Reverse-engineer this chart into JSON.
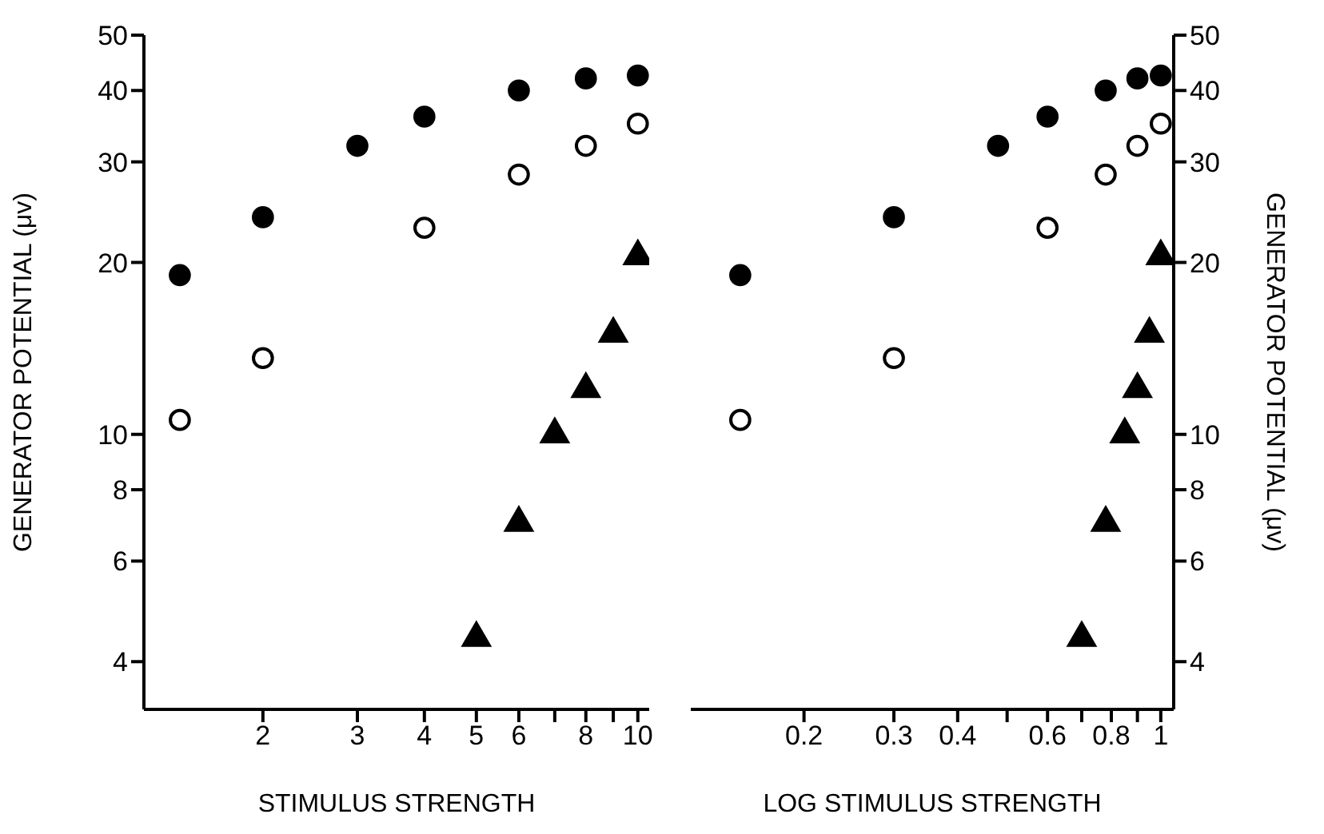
{
  "chart_data": [
    {
      "type": "scatter",
      "xlabel": "STIMULUS STRENGTH",
      "ylabel": "GENERATOR POTENTIAL (μv)",
      "log": "xy",
      "grid": false,
      "legend": false,
      "xlim": [
        1.2,
        10.5
      ],
      "xticks": [
        2,
        3,
        4,
        5,
        6,
        {
          "value": 7,
          "label": null
        },
        8,
        {
          "value": 9,
          "label": null
        },
        10
      ],
      "ylim": [
        3.3,
        50
      ],
      "yticks": [
        4,
        6,
        8,
        10,
        20,
        30,
        40,
        50
      ],
      "series": [
        {
          "color": "#000000",
          "marker": "circle",
          "x": [
            1.4,
            2,
            3,
            4,
            6,
            8,
            10
          ],
          "values": [
            19,
            24,
            32,
            36,
            40,
            42,
            42.5
          ]
        },
        {
          "color": "#ffffff",
          "marker": "circle",
          "x": [
            1.4,
            2,
            4,
            6,
            8,
            10
          ],
          "values": [
            10.6,
            13.6,
            23,
            28.5,
            32,
            35
          ]
        },
        {
          "color": "#000000",
          "marker": "triangle",
          "x": [
            5,
            6,
            7,
            8,
            9,
            10
          ],
          "values": [
            4.4,
            7,
            10,
            12,
            15,
            20.5
          ]
        }
      ]
    },
    {
      "type": "scatter",
      "xlabel": "LOG STIMULUS STRENGTH",
      "ylabel": "GENERATOR POTENTIAL (μv)",
      "log": "xy",
      "grid": false,
      "legend": false,
      "xlim": [
        0.12,
        1.06
      ],
      "xticks": [
        0.2,
        0.3,
        0.4,
        {
          "value": 0.5,
          "label": null
        },
        0.6,
        {
          "value": 0.7,
          "label": null
        },
        0.8,
        {
          "value": 0.9,
          "label": null
        },
        1
      ],
      "ylim": [
        3.3,
        50
      ],
      "yticks": [
        4,
        6,
        8,
        10,
        20,
        30,
        40,
        50
      ],
      "series": [
        {
          "color": "#000000",
          "marker": "circle",
          "x": [
            0.15,
            0.3,
            0.48,
            0.6,
            0.78,
            0.9,
            1
          ],
          "values": [
            19,
            24,
            32,
            36,
            40,
            42,
            42.5
          ]
        },
        {
          "color": "#ffffff",
          "marker": "circle",
          "x": [
            0.15,
            0.3,
            0.6,
            0.78,
            0.9,
            1
          ],
          "values": [
            10.6,
            13.6,
            23,
            28.5,
            32,
            35
          ]
        },
        {
          "color": "#000000",
          "marker": "triangle",
          "x": [
            0.7,
            0.78,
            0.85,
            0.9,
            0.95,
            1
          ],
          "values": [
            4.4,
            7,
            10,
            12,
            15,
            20.5
          ]
        }
      ]
    }
  ]
}
